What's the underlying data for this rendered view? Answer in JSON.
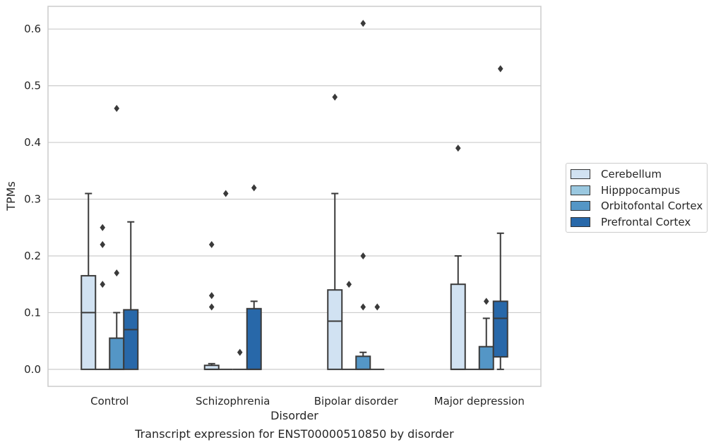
{
  "chart_data": {
    "type": "box",
    "xlabel": "Disorder",
    "ylabel": "TPMs",
    "ylim": [
      -0.03,
      0.64
    ],
    "yticks": [
      "0.0",
      "0.1",
      "0.2",
      "0.3",
      "0.4",
      "0.5",
      "0.6"
    ],
    "grid": true,
    "legend_position": "right-outside",
    "categories": [
      "Control",
      "Schizophrenia",
      "Bipolar disorder",
      "Major depression"
    ],
    "series": [
      {
        "name": "Cerebellum",
        "color": "#d1e2f2",
        "boxes": [
          {
            "min": 0,
            "q1": 0,
            "median": 0.1,
            "q3": 0.165,
            "max": 0.31,
            "outliers": []
          },
          {
            "min": 0,
            "q1": 0,
            "median": 0,
            "q3": 0.007,
            "max": 0.01,
            "outliers": [
              0.22,
              0.13,
              0.11
            ]
          },
          {
            "min": 0,
            "q1": 0,
            "median": 0.085,
            "q3": 0.14,
            "max": 0.31,
            "outliers": [
              0.48
            ]
          },
          {
            "min": 0,
            "q1": 0,
            "median": 0,
            "q3": 0.15,
            "max": 0.2,
            "outliers": [
              0.39
            ]
          }
        ]
      },
      {
        "name": "Hipppocampus",
        "color": "#9ac8e0",
        "boxes": [
          {
            "min": 0,
            "q1": 0,
            "median": 0,
            "q3": 0,
            "max": 0,
            "outliers": [
              0.25,
              0.22,
              0.15
            ]
          },
          {
            "min": 0,
            "q1": 0,
            "median": 0,
            "q3": 0,
            "max": 0,
            "outliers": [
              0.31
            ]
          },
          {
            "min": 0,
            "q1": 0,
            "median": 0,
            "q3": 0,
            "max": 0,
            "outliers": [
              0.15
            ]
          },
          {
            "min": 0,
            "q1": 0,
            "median": 0,
            "q3": 0,
            "max": 0,
            "outliers": []
          }
        ]
      },
      {
        "name": "Orbitofontal Cortex",
        "color": "#5496c6",
        "boxes": [
          {
            "min": 0,
            "q1": 0,
            "median": 0,
            "q3": 0.055,
            "max": 0.1,
            "outliers": [
              0.46,
              0.17
            ]
          },
          {
            "min": 0,
            "q1": 0,
            "median": 0,
            "q3": 0,
            "max": 0,
            "outliers": [
              0.03
            ]
          },
          {
            "min": 0,
            "q1": 0,
            "median": 0,
            "q3": 0.023,
            "max": 0.03,
            "outliers": [
              0.61,
              0.2,
              0.11
            ]
          },
          {
            "min": 0,
            "q1": 0,
            "median": 0,
            "q3": 0.04,
            "max": 0.09,
            "outliers": [
              0.12
            ]
          }
        ]
      },
      {
        "name": "Prefrontal Cortex",
        "color": "#2868a9",
        "boxes": [
          {
            "min": 0,
            "q1": 0,
            "median": 0.07,
            "q3": 0.105,
            "max": 0.26,
            "outliers": []
          },
          {
            "min": 0,
            "q1": 0,
            "median": 0,
            "q3": 0.107,
            "max": 0.12,
            "outliers": [
              0.32
            ]
          },
          {
            "min": 0,
            "q1": 0,
            "median": 0,
            "q3": 0,
            "max": 0,
            "outliers": [
              0.11
            ]
          },
          {
            "min": 0,
            "q1": 0.022,
            "median": 0.09,
            "q3": 0.12,
            "max": 0.24,
            "outliers": [
              0.53
            ]
          }
        ]
      }
    ]
  },
  "caption": "Transcript expression for ENST00000510850 by disorder"
}
